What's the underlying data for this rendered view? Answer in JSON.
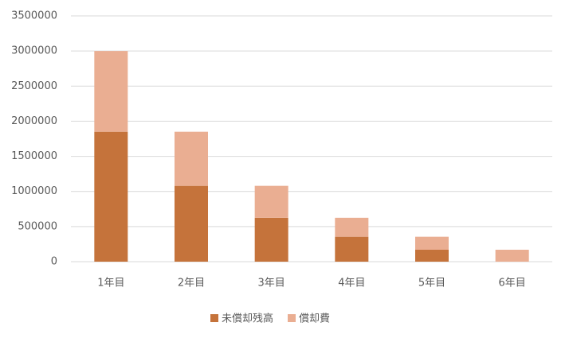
{
  "chart_data": {
    "type": "stacked-bar",
    "categories": [
      "1年目",
      "2年目",
      "3年目",
      "4年目",
      "5年目",
      "6年目"
    ],
    "series": [
      {
        "name": "未償却残高",
        "color": "#c5733b",
        "values": [
          1850000,
          1080000,
          625000,
          355000,
          170000,
          0
        ]
      },
      {
        "name": "償却費",
        "color": "#eaae92",
        "values": [
          1150000,
          770000,
          455000,
          270000,
          185000,
          170000
        ]
      }
    ],
    "ylim": [
      0,
      3500000
    ],
    "yticks": [
      0,
      500000,
      1000000,
      1500000,
      2000000,
      2500000,
      3000000,
      3500000
    ],
    "grid": true,
    "legend": "bottom"
  }
}
